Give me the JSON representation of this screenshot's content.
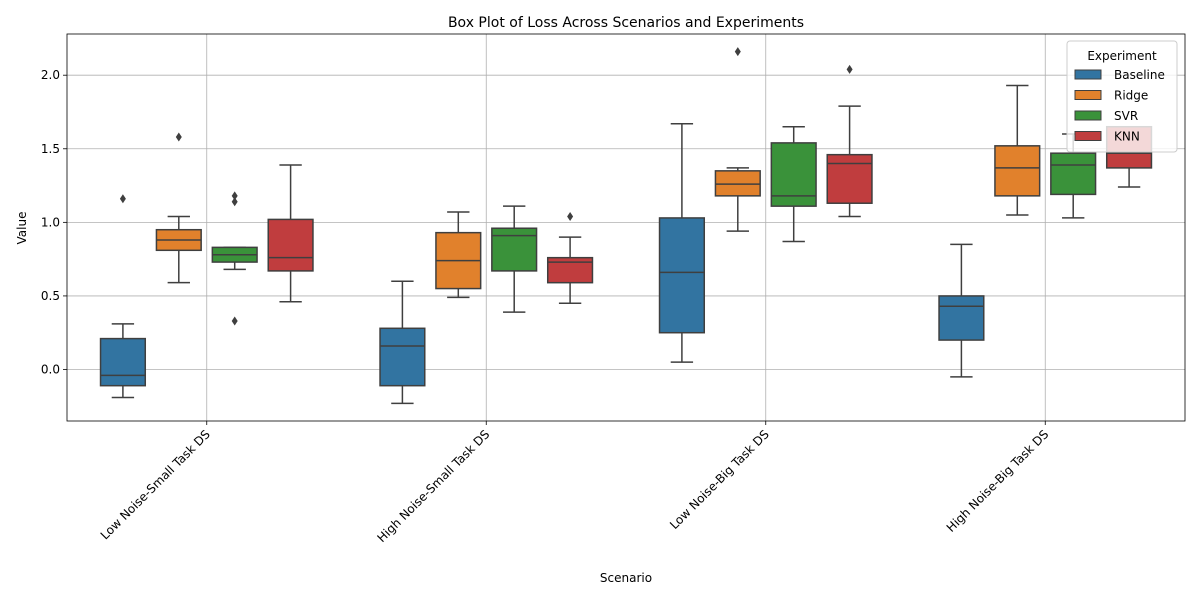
{
  "chart_data": {
    "type": "box",
    "title": "Box Plot of Loss Across Scenarios and Experiments",
    "xlabel": "Scenario",
    "ylabel": "Value",
    "ylim": [
      -0.35,
      2.28
    ],
    "yticks": [
      0.0,
      0.5,
      1.0,
      1.5,
      2.0
    ],
    "ytick_labels": [
      "0.0",
      "0.5",
      "1.0",
      "1.5",
      "2.0"
    ],
    "grid": true,
    "legend_title": "Experiment",
    "legend_position": "top-right",
    "categories": [
      "Low Noise-Small Task DS",
      "High Noise-Small Task DS",
      "Low Noise-Big Task DS",
      "High Noise-Big Task DS"
    ],
    "series": [
      {
        "name": "Baseline",
        "color": "#3274a1",
        "boxes": [
          {
            "whisker_low": -0.19,
            "q1": -0.11,
            "median": -0.04,
            "q3": 0.21,
            "whisker_high": 0.31,
            "outliers": [
              1.16
            ]
          },
          {
            "whisker_low": -0.23,
            "q1": -0.11,
            "median": 0.16,
            "q3": 0.28,
            "whisker_high": 0.6,
            "outliers": []
          },
          {
            "whisker_low": 0.05,
            "q1": 0.25,
            "median": 0.66,
            "q3": 1.03,
            "whisker_high": 1.67,
            "outliers": []
          },
          {
            "whisker_low": -0.05,
            "q1": 0.2,
            "median": 0.43,
            "q3": 0.5,
            "whisker_high": 0.85,
            "outliers": []
          }
        ]
      },
      {
        "name": "Ridge",
        "color": "#e1812c",
        "boxes": [
          {
            "whisker_low": 0.59,
            "q1": 0.81,
            "median": 0.88,
            "q3": 0.95,
            "whisker_high": 1.04,
            "outliers": [
              1.58
            ]
          },
          {
            "whisker_low": 0.49,
            "q1": 0.55,
            "median": 0.74,
            "q3": 0.93,
            "whisker_high": 1.07,
            "outliers": []
          },
          {
            "whisker_low": 0.94,
            "q1": 1.18,
            "median": 1.26,
            "q3": 1.35,
            "whisker_high": 1.37,
            "outliers": [
              2.16
            ]
          },
          {
            "whisker_low": 1.05,
            "q1": 1.18,
            "median": 1.37,
            "q3": 1.52,
            "whisker_high": 1.93,
            "outliers": []
          }
        ]
      },
      {
        "name": "SVR",
        "color": "#3a923a",
        "boxes": [
          {
            "whisker_low": 0.68,
            "q1": 0.73,
            "median": 0.78,
            "q3": 0.83,
            "whisker_high": 0.83,
            "outliers": [
              1.14,
              1.18,
              0.33
            ]
          },
          {
            "whisker_low": 0.39,
            "q1": 0.67,
            "median": 0.91,
            "q3": 0.96,
            "whisker_high": 1.11,
            "outliers": []
          },
          {
            "whisker_low": 0.87,
            "q1": 1.11,
            "median": 1.18,
            "q3": 1.54,
            "whisker_high": 1.65,
            "outliers": []
          },
          {
            "whisker_low": 1.03,
            "q1": 1.19,
            "median": 1.39,
            "q3": 1.47,
            "whisker_high": 1.6,
            "outliers": []
          }
        ]
      },
      {
        "name": "KNN",
        "color": "#c03d3e",
        "boxes": [
          {
            "whisker_low": 0.46,
            "q1": 0.67,
            "median": 0.76,
            "q3": 1.02,
            "whisker_high": 1.39,
            "outliers": []
          },
          {
            "whisker_low": 0.45,
            "q1": 0.59,
            "median": 0.73,
            "q3": 0.76,
            "whisker_high": 0.9,
            "outliers": [
              1.04
            ]
          },
          {
            "whisker_low": 1.04,
            "q1": 1.13,
            "median": 1.4,
            "q3": 1.46,
            "whisker_high": 1.79,
            "outliers": [
              2.04
            ]
          },
          {
            "whisker_low": 1.24,
            "q1": 1.37,
            "median": 1.47,
            "q3": 1.65,
            "whisker_high": 1.65,
            "outliers": []
          }
        ]
      }
    ]
  }
}
